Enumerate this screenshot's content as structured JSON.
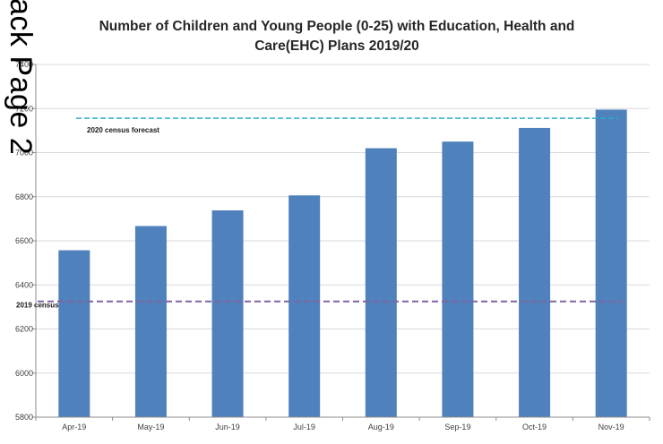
{
  "watermark": "ack Page 2",
  "chart_data": {
    "type": "bar",
    "title_line1": "Number of Children and Young People (0-25) with Education, Health and",
    "title_line2": "Care(EHC) Plans 2019/20",
    "categories": [
      "Apr-19",
      "May-19",
      "Jun-19",
      "Jul-19",
      "Aug-19",
      "Sep-19",
      "Oct-19",
      "Nov-19"
    ],
    "values": [
      6557,
      6667,
      6738,
      6806,
      7020,
      7050,
      7112,
      7195
    ],
    "ylim": [
      5800,
      7400
    ],
    "yticks": [
      5800,
      6000,
      6200,
      6400,
      6600,
      6800,
      7000,
      7200,
      7400
    ],
    "bar_color": "#4f81bd",
    "grid": true,
    "reference_lines": [
      {
        "label": "2020 census forecast",
        "value": 7156,
        "color": "#2ab0c8"
      },
      {
        "label": "2019 census",
        "value": 6325,
        "color": "#8064a2"
      }
    ]
  }
}
